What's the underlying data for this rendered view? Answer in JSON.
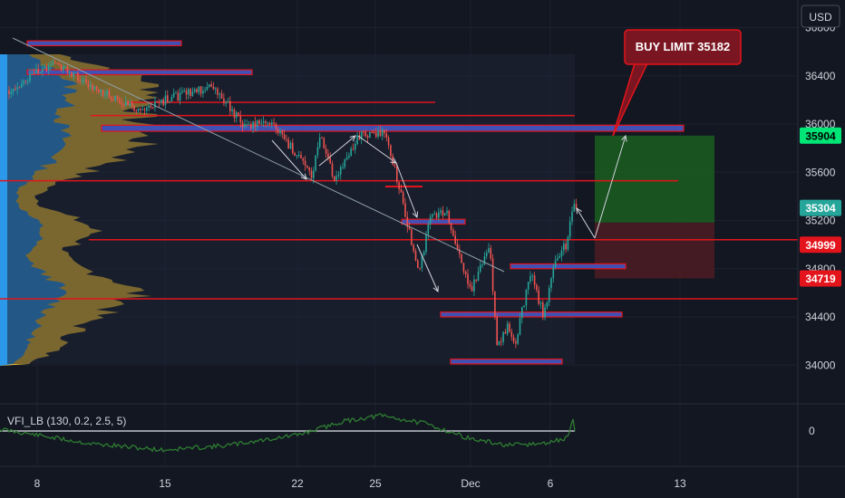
{
  "currency": "USD",
  "indicator_label": "VFI_LB (130, 0.2, 2.5, 5)",
  "callout": "BUY LIMIT 35182",
  "colors": {
    "background": "#131722",
    "grid": "#1e2230",
    "level_line": "#e3141b",
    "zone_fill": "#3f51b5",
    "zone_border": "#e3141b",
    "candle_up": "#26a69a",
    "candle_down": "#ef5350",
    "trendline": "#8fa0a8",
    "arrow": "#d1d4dc",
    "profile_blue": "#2196f3",
    "profile_yellow": "#f6c22d",
    "profit_zone": "#1b5e20",
    "loss_zone": "#4a1c22",
    "callout_bg": "#7a1622",
    "vfi_line": "#2e7d32",
    "vfi_zero": "#9598a1"
  },
  "chart_data": {
    "type": "candlestick",
    "x_ticks": [
      "8",
      "15",
      "22",
      "25",
      "Dec",
      "6",
      "13"
    ],
    "y_ticks": [
      36800,
      36400,
      36000,
      35600,
      35200,
      34800,
      34400,
      34000
    ],
    "ylim": [
      33800,
      36950
    ],
    "price_tags": [
      {
        "value": 35904,
        "label": "35904",
        "color": "#00e676",
        "text_color": "#000000"
      },
      {
        "value": 35304,
        "label": "35304",
        "color": "#26a69a",
        "text_color": "#ffffff"
      },
      {
        "value": 34999,
        "label": "34999",
        "color": "#e3141b",
        "text_color": "#ffffff"
      },
      {
        "value": 34719,
        "label": "34719",
        "color": "#e3141b",
        "text_color": "#ffffff"
      }
    ],
    "levels": [
      35530,
      35040,
      34550,
      36070,
      36180
    ],
    "zones": [
      {
        "from": "8",
        "to": "15",
        "low": 36650,
        "high": 36690
      },
      {
        "from": "8",
        "to": "15",
        "low": 36410,
        "high": 36450
      },
      {
        "from": "15",
        "to": "13",
        "low": 35940,
        "high": 35990
      },
      {
        "from": "25",
        "to": "Dec",
        "low": 35170,
        "high": 35210
      },
      {
        "from": "Dec",
        "to": "6",
        "low": 34800,
        "high": 34840
      },
      {
        "from": "Dec",
        "to": "6",
        "low": 34400,
        "high": 34440
      },
      {
        "from": "Dec",
        "to": "6",
        "low": 34010,
        "high": 34050
      }
    ],
    "trade": {
      "entry": 35182,
      "target": 35904,
      "stop": 34719
    },
    "close_price": 35304,
    "vfi": {
      "zero_label": "0"
    }
  }
}
